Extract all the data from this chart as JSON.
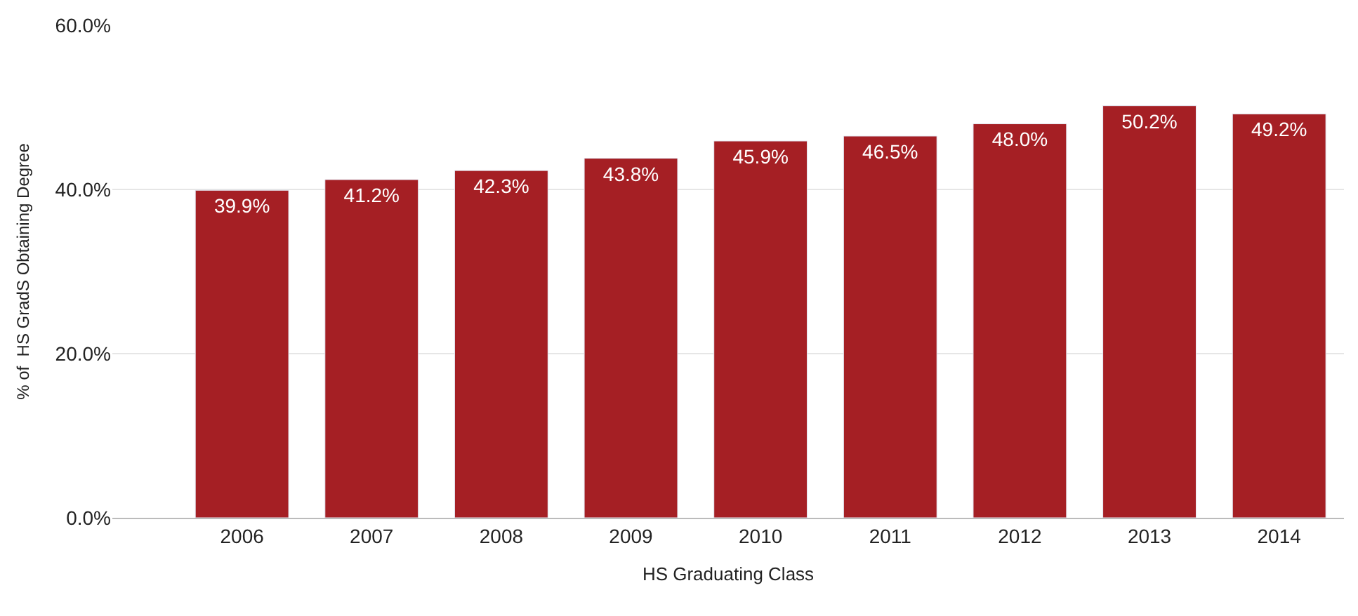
{
  "chart_data": {
    "type": "bar",
    "xlabel": "HS Graduating Class",
    "ylabel": "% of  HS GradS Obtaining Degree",
    "categories": [
      "2006",
      "2007",
      "2008",
      "2009",
      "2010",
      "2011",
      "2012",
      "2013",
      "2014"
    ],
    "values": [
      39.9,
      41.2,
      42.3,
      43.8,
      45.9,
      46.5,
      48.0,
      50.2,
      49.2
    ],
    "value_labels": [
      "39.9%",
      "41.2%",
      "42.3%",
      "43.8%",
      "45.9%",
      "46.5%",
      "48.0%",
      "50.2%",
      "49.2%"
    ],
    "color": "#a51f24",
    "ylim": [
      0,
      60
    ],
    "yticks": [
      {
        "value": 0,
        "label": "0.0%"
      },
      {
        "value": 20,
        "label": "20.0%"
      },
      {
        "value": 40,
        "label": "40.0%"
      },
      {
        "value": 60,
        "label": "60.0%"
      }
    ],
    "grid": "y",
    "legend": false
  }
}
